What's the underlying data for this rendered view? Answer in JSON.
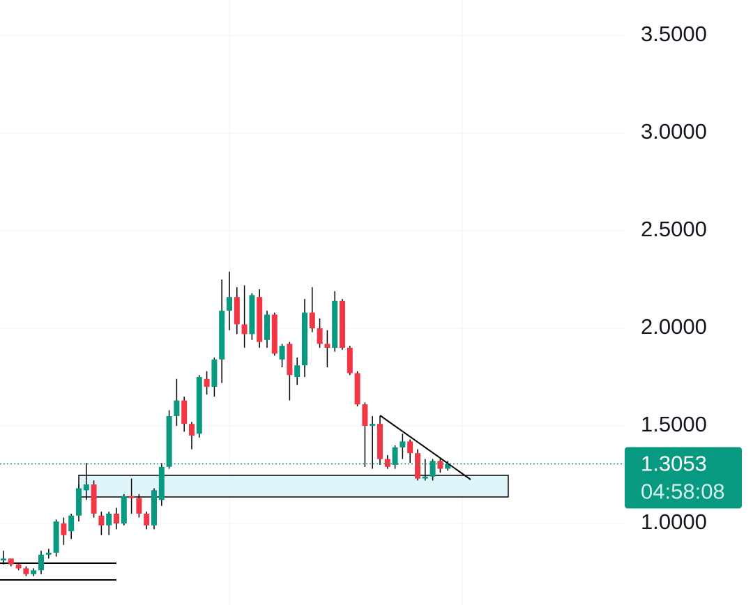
{
  "chart_data": {
    "type": "candlestick",
    "open": [
      0.81,
      0.82,
      0.79,
      0.77,
      0.74,
      0.76,
      0.84,
      0.85,
      1.0,
      0.96,
      1.04,
      1.17,
      1.2,
      1.04,
      0.99,
      1.05,
      1.0,
      1.14,
      1.13,
      1.05,
      0.99,
      1.12,
      1.29,
      1.55,
      1.63,
      1.51,
      1.46,
      1.74,
      1.7,
      1.84,
      2.09,
      2.16,
      2.02,
      1.97,
      2.16,
      1.94,
      2.07,
      1.84,
      1.92,
      1.75,
      1.81,
      2.08,
      2.0,
      1.92,
      1.9,
      2.14,
      1.9,
      1.77,
      1.61,
      1.5,
      1.51,
      1.33,
      1.3,
      1.39,
      1.42,
      1.36,
      1.23,
      1.24,
      1.32,
      1.28
    ],
    "high": [
      0.86,
      0.82,
      0.8,
      0.78,
      0.77,
      0.86,
      0.87,
      1.02,
      1.03,
      1.05,
      1.2,
      1.31,
      1.22,
      1.06,
      1.06,
      1.08,
      1.15,
      1.23,
      1.15,
      1.06,
      1.18,
      1.31,
      1.58,
      1.74,
      1.65,
      1.52,
      1.76,
      1.78,
      1.85,
      2.25,
      2.29,
      2.21,
      2.22,
      2.18,
      2.2,
      2.09,
      2.08,
      1.92,
      1.93,
      1.85,
      2.15,
      2.21,
      2.05,
      1.99,
      2.19,
      2.15,
      1.91,
      1.78,
      1.62,
      1.55,
      1.55,
      1.35,
      1.4,
      1.46,
      1.43,
      1.38,
      1.33,
      1.33,
      1.33,
      1.32
    ],
    "low": [
      0.79,
      0.78,
      0.76,
      0.73,
      0.73,
      0.74,
      0.82,
      0.83,
      0.89,
      0.92,
      1.01,
      1.12,
      1.03,
      0.94,
      0.94,
      0.97,
      0.99,
      1.05,
      1.03,
      0.97,
      0.97,
      1.09,
      1.28,
      1.5,
      1.47,
      1.38,
      1.44,
      1.66,
      1.65,
      1.72,
      1.99,
      1.97,
      1.9,
      1.94,
      1.9,
      1.9,
      1.86,
      1.8,
      1.63,
      1.71,
      1.75,
      1.98,
      1.9,
      1.8,
      1.88,
      1.89,
      1.76,
      1.6,
      1.29,
      1.28,
      1.3,
      1.28,
      1.28,
      1.33,
      1.31,
      1.22,
      1.22,
      1.22,
      1.26,
      1.27
    ],
    "close": [
      0.82,
      0.79,
      0.77,
      0.74,
      0.76,
      0.84,
      0.85,
      1.01,
      0.94,
      1.04,
      1.18,
      1.2,
      1.05,
      0.99,
      1.05,
      1.0,
      1.14,
      1.13,
      1.05,
      0.99,
      1.17,
      1.29,
      1.55,
      1.63,
      1.51,
      1.45,
      1.75,
      1.7,
      1.84,
      2.09,
      2.16,
      2.02,
      1.97,
      2.17,
      1.93,
      2.07,
      1.87,
      1.91,
      1.76,
      1.81,
      2.08,
      2.0,
      1.92,
      1.9,
      2.14,
      1.9,
      1.77,
      1.61,
      1.5,
      1.51,
      1.33,
      1.29,
      1.39,
      1.42,
      1.36,
      1.23,
      1.24,
      1.32,
      1.28,
      1.3053
    ],
    "up_color": "#089981",
    "down_color": "#f23645",
    "wick_color": "#000000",
    "ylim": [
      0.582,
      3.682
    ],
    "yticks": [
      {
        "value": 3.5,
        "label": "3.5000"
      },
      {
        "value": 3.0,
        "label": "3.0000"
      },
      {
        "value": 2.5,
        "label": "2.5000"
      },
      {
        "value": 2.0,
        "label": "2.0000"
      },
      {
        "value": 1.5,
        "label": "1.5000"
      },
      {
        "value": 1.0,
        "label": "1.0000"
      }
    ],
    "grid": true,
    "last_price": 1.3053,
    "countdown": "04:58:08"
  }
}
